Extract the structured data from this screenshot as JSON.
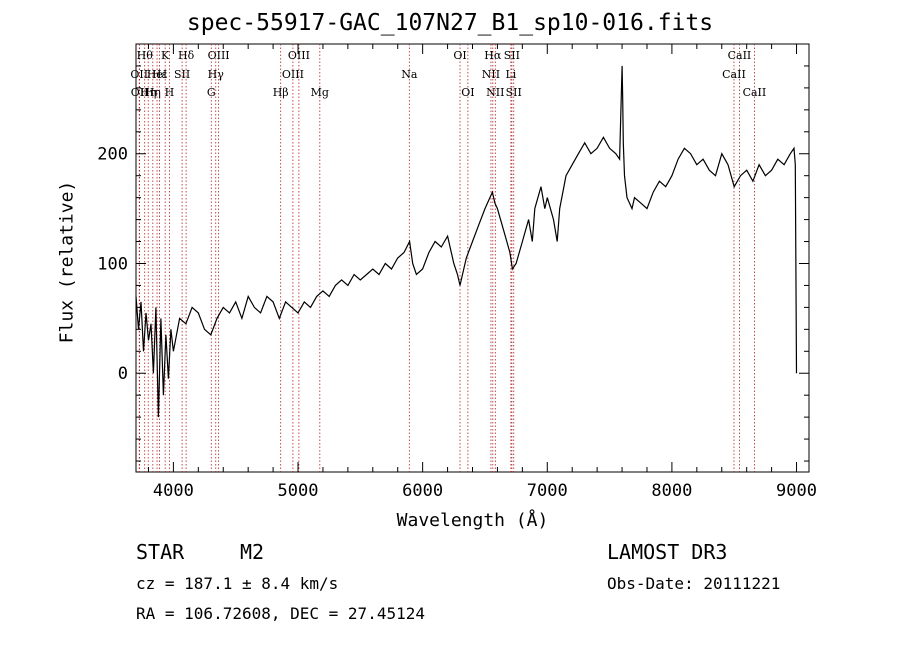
{
  "chart_data": {
    "type": "line",
    "title": "spec-55917-GAC_107N27_B1_sp10-016.fits",
    "xlabel": "Wavelength (Å)",
    "ylabel": "Flux (relative)",
    "xlim": [
      3700,
      9100
    ],
    "ylim": [
      -90,
      300
    ],
    "xticks": [
      4000,
      5000,
      6000,
      7000,
      8000,
      9000
    ],
    "yticks": [
      0,
      100,
      200
    ],
    "series": [
      {
        "name": "spectrum",
        "x": [
          3700,
          3720,
          3740,
          3760,
          3780,
          3800,
          3820,
          3840,
          3860,
          3880,
          3900,
          3920,
          3940,
          3960,
          3980,
          4000,
          4050,
          4100,
          4150,
          4200,
          4250,
          4300,
          4350,
          4400,
          4450,
          4500,
          4550,
          4600,
          4650,
          4700,
          4750,
          4800,
          4850,
          4900,
          4950,
          5000,
          5050,
          5100,
          5150,
          5200,
          5250,
          5300,
          5350,
          5400,
          5450,
          5500,
          5550,
          5600,
          5650,
          5700,
          5750,
          5800,
          5850,
          5895,
          5920,
          5950,
          6000,
          6050,
          6100,
          6150,
          6200,
          6250,
          6280,
          6300,
          6350,
          6400,
          6450,
          6500,
          6540,
          6560,
          6580,
          6600,
          6650,
          6700,
          6720,
          6750,
          6800,
          6850,
          6880,
          6900,
          6950,
          6980,
          7000,
          7050,
          7080,
          7100,
          7150,
          7200,
          7250,
          7300,
          7350,
          7400,
          7450,
          7500,
          7550,
          7580,
          7600,
          7605,
          7610,
          7620,
          7640,
          7680,
          7700,
          7750,
          7800,
          7850,
          7900,
          7950,
          8000,
          8050,
          8100,
          8150,
          8200,
          8250,
          8300,
          8350,
          8400,
          8450,
          8500,
          8550,
          8600,
          8650,
          8700,
          8750,
          8800,
          8850,
          8900,
          8950,
          8980,
          8990,
          9000
        ],
        "values": [
          70,
          40,
          65,
          20,
          55,
          30,
          45,
          0,
          60,
          -40,
          50,
          -20,
          35,
          -5,
          40,
          20,
          50,
          45,
          60,
          55,
          40,
          35,
          50,
          60,
          55,
          65,
          50,
          70,
          60,
          55,
          70,
          65,
          50,
          65,
          60,
          55,
          65,
          60,
          70,
          75,
          70,
          80,
          85,
          80,
          90,
          85,
          90,
          95,
          90,
          100,
          95,
          105,
          110,
          120,
          100,
          90,
          95,
          110,
          120,
          115,
          125,
          100,
          90,
          80,
          105,
          120,
          135,
          150,
          160,
          165,
          155,
          150,
          130,
          110,
          95,
          100,
          120,
          140,
          120,
          150,
          170,
          150,
          160,
          140,
          120,
          150,
          180,
          190,
          200,
          210,
          200,
          205,
          215,
          205,
          200,
          195,
          280,
          250,
          210,
          180,
          160,
          150,
          160,
          155,
          150,
          165,
          175,
          170,
          180,
          195,
          205,
          200,
          190,
          195,
          185,
          180,
          200,
          190,
          170,
          180,
          185,
          175,
          190,
          180,
          185,
          195,
          190,
          200,
          205,
          190,
          0
        ]
      }
    ],
    "lines": [
      {
        "x": 3726,
        "label": "OII",
        "row": 1
      },
      {
        "x": 3729,
        "label": "OII",
        "row": 2
      },
      {
        "x": 3770,
        "label": "Hθ",
        "row": 0
      },
      {
        "x": 3798,
        "label": "Hη",
        "row": 2
      },
      {
        "x": 3835,
        "label": "Hη",
        "row": 2
      },
      {
        "x": 3869,
        "label": "HeI",
        "row": 1
      },
      {
        "x": 3889,
        "label": "Hε",
        "row": 1
      },
      {
        "x": 3934,
        "label": "K",
        "row": 0
      },
      {
        "x": 3968,
        "label": "H",
        "row": 2
      },
      {
        "x": 4070,
        "label": "SII",
        "row": 1
      },
      {
        "x": 4102,
        "label": "Hδ",
        "row": 0
      },
      {
        "x": 4304,
        "label": "G",
        "row": 2
      },
      {
        "x": 4340,
        "label": "Hγ",
        "row": 1
      },
      {
        "x": 4363,
        "label": "OIII",
        "row": 0
      },
      {
        "x": 4861,
        "label": "Hβ",
        "row": 2
      },
      {
        "x": 4959,
        "label": "OIII",
        "row": 1
      },
      {
        "x": 5007,
        "label": "OIII",
        "row": 0
      },
      {
        "x": 5175,
        "label": "Mg",
        "row": 2
      },
      {
        "x": 5893,
        "label": "Na",
        "row": 1
      },
      {
        "x": 6300,
        "label": "OI",
        "row": 0
      },
      {
        "x": 6363,
        "label": "OI",
        "row": 2
      },
      {
        "x": 6548,
        "label": "NII",
        "row": 1
      },
      {
        "x": 6563,
        "label": "Hα",
        "row": 0
      },
      {
        "x": 6583,
        "label": "NII",
        "row": 2
      },
      {
        "x": 6708,
        "label": "Li",
        "row": 1
      },
      {
        "x": 6716,
        "label": "SII",
        "row": 0
      },
      {
        "x": 6731,
        "label": "SII",
        "row": 2
      },
      {
        "x": 8498,
        "label": "CaII",
        "row": 1
      },
      {
        "x": 8542,
        "label": "CaII",
        "row": 0
      },
      {
        "x": 8662,
        "label": "CaII",
        "row": 2
      }
    ],
    "grid": false,
    "legend": "none"
  },
  "info": {
    "class": "STAR",
    "subclass": "M2",
    "survey": "LAMOST DR3",
    "cz": "cz = 187.1 ± 8.4 km/s",
    "obs_date": "Obs-Date: 20111221",
    "coords": "RA = 106.72608, DEC =  27.45124"
  },
  "colors": {
    "line": "#000000",
    "marker": "#b22222",
    "axis": "#000000"
  }
}
